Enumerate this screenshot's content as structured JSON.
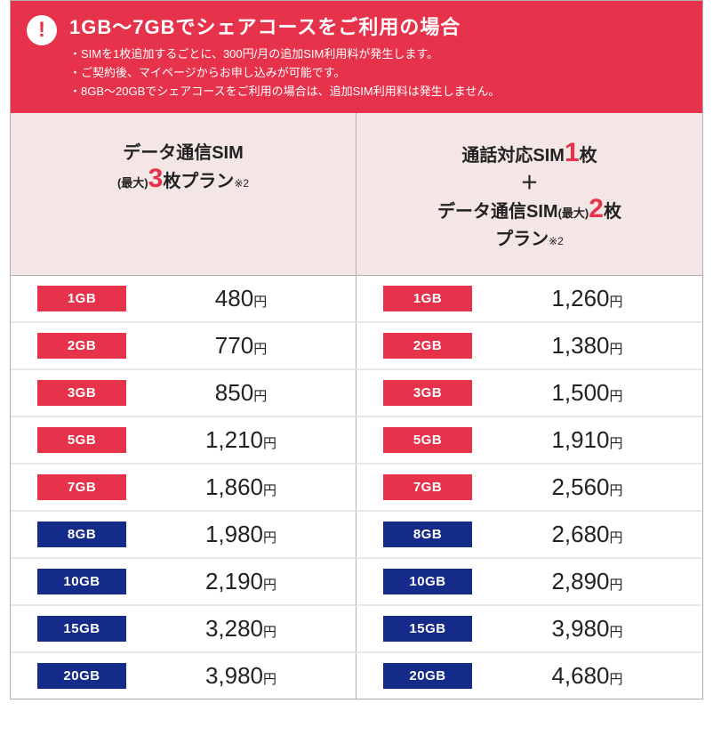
{
  "notice": {
    "title": "1GB～7GBでシェアコースをご利用の場合",
    "lines": [
      "・SIMを1枚追加するごとに、300円/月の追加SIM利用料が発生します。",
      "・ご契約後、マイページからお申し込みが可能です。",
      "・8GB～20GBでシェアコースをご利用の場合は、追加SIM利用料は発生しません。"
    ],
    "colors": {
      "bg": "#e6324a",
      "fg": "#ffffff"
    }
  },
  "headers": {
    "left": {
      "line1_a": "データ通信SIM",
      "small": "(最大)",
      "big": "3",
      "line2_b": "枚プラン",
      "note": "※2"
    },
    "right": {
      "line1_a": "通話対応SIM",
      "big1": "1",
      "line1_b": "枚",
      "plus": "＋",
      "line2_a": "データ通信SIM",
      "small": "(最大)",
      "big2": "2",
      "line2_b": "枚",
      "line3": "プラン",
      "note": "※2"
    },
    "bg": "#f5e6e6"
  },
  "rows": [
    {
      "gb": "1GB",
      "color": "pink",
      "left": "480",
      "right": "1,260"
    },
    {
      "gb": "2GB",
      "color": "pink",
      "left": "770",
      "right": "1,380"
    },
    {
      "gb": "3GB",
      "color": "pink",
      "left": "850",
      "right": "1,500"
    },
    {
      "gb": "5GB",
      "color": "pink",
      "left": "1,210",
      "right": "1,910"
    },
    {
      "gb": "7GB",
      "color": "pink",
      "left": "1,860",
      "right": "2,560"
    },
    {
      "gb": "8GB",
      "color": "navy",
      "left": "1,980",
      "right": "2,680"
    },
    {
      "gb": "10GB",
      "color": "navy",
      "left": "2,190",
      "right": "2,890"
    },
    {
      "gb": "15GB",
      "color": "navy",
      "left": "3,280",
      "right": "3,980"
    },
    {
      "gb": "20GB",
      "color": "navy",
      "left": "3,980",
      "right": "4,680"
    }
  ],
  "badge_colors": {
    "pink": "#e6324a",
    "navy": "#152b8a"
  },
  "yen": "円"
}
